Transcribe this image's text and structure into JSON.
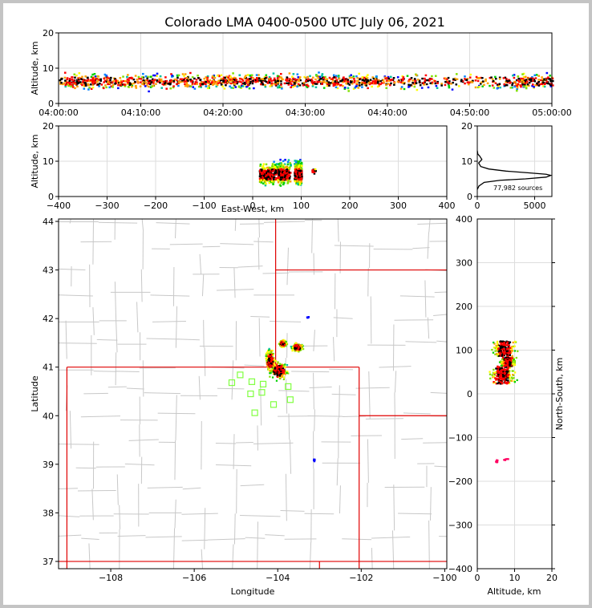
{
  "title": "Colorado LMA 0400-0500 UTC July 06, 2021",
  "colors": {
    "frame": "#c4c4c4",
    "grid": "#dddddd",
    "county": "#c8c8c8",
    "state": "#e00000",
    "station": "#80ff40",
    "palette": [
      "#0000ff",
      "#0080ff",
      "#00c0a0",
      "#00d000",
      "#80e000",
      "#ffff00",
      "#ffa000",
      "#ff0000",
      "#ff0060",
      "#000000"
    ]
  },
  "chart_data": [
    {
      "id": "time-altitude",
      "type": "heatmap",
      "xlabel": "",
      "ylabel": "Altitude, km",
      "xlim_minutes": [
        0,
        60
      ],
      "ylim": [
        0,
        20
      ],
      "xtick_labels": [
        "04:00:00",
        "04:10:00",
        "04:20:00",
        "04:30:00",
        "04:40:00",
        "04:50:00",
        "05:00:00"
      ],
      "ytick_values": [
        0,
        10,
        20
      ],
      "band_center_km": 6.5,
      "band_extent_km": [
        3,
        12
      ]
    },
    {
      "id": "eastwest-altitude",
      "type": "heatmap",
      "xlabel": "East-West, km",
      "ylabel": "Altitude, km",
      "xlim": [
        -400,
        400
      ],
      "ylim": [
        0,
        20
      ],
      "xtick_values": [
        -400,
        -300,
        -200,
        -100,
        0,
        100,
        200,
        300,
        400
      ],
      "ytick_values": [
        0,
        10,
        20
      ],
      "cells": [
        {
          "ew": 25,
          "alt": 6.5,
          "w": 25,
          "h": 9
        },
        {
          "ew": 57,
          "alt": 7,
          "w": 40,
          "h": 11
        },
        {
          "ew": 92,
          "alt": 7,
          "w": 15,
          "h": 12
        },
        {
          "ew": 125,
          "alt": 7.5,
          "w": 8,
          "h": 3
        }
      ]
    },
    {
      "id": "altitude-histogram",
      "type": "line",
      "annotation": "77,982 sources",
      "xlim": [
        0,
        6500
      ],
      "ylim": [
        0,
        20
      ],
      "xtick_values": [
        0,
        5000
      ],
      "ytick_values": [
        0,
        10,
        20
      ],
      "x": [
        0,
        150,
        600,
        2000,
        4200,
        6000,
        6400,
        6000,
        4500,
        2500,
        1000,
        300,
        120,
        400,
        200,
        50,
        0
      ],
      "y": [
        2,
        3,
        4,
        4.6,
        5,
        5.5,
        6,
        6.3,
        6.7,
        7.2,
        7.8,
        8.5,
        9.5,
        10.5,
        11.5,
        12,
        13
      ]
    },
    {
      "id": "map",
      "type": "scatter",
      "xlabel": "Longitude",
      "ylabel": "Latitude",
      "xlim": [
        -109.25,
        -99.95
      ],
      "ylim": [
        36.85,
        44.05
      ],
      "xtick_values": [
        -108,
        -106,
        -104,
        -102,
        -100
      ],
      "ytick_values": [
        37,
        38,
        39,
        40,
        41,
        42,
        43,
        44
      ],
      "stations": [
        {
          "lon": -104.9,
          "lat": 40.84
        },
        {
          "lon": -105.1,
          "lat": 40.68
        },
        {
          "lon": -104.62,
          "lat": 40.7
        },
        {
          "lon": -104.35,
          "lat": 40.65
        },
        {
          "lon": -104.65,
          "lat": 40.45
        },
        {
          "lon": -104.38,
          "lat": 40.48
        },
        {
          "lon": -103.75,
          "lat": 40.6
        },
        {
          "lon": -103.7,
          "lat": 40.33
        },
        {
          "lon": -104.1,
          "lat": 40.23
        },
        {
          "lon": -104.55,
          "lat": 40.06
        }
      ],
      "source_clusters": [
        {
          "lon": -104.0,
          "lat": 40.95,
          "rlon": 0.28,
          "rlat": 0.25
        },
        {
          "lon": -104.2,
          "lat": 41.15,
          "rlon": 0.15,
          "rlat": 0.3
        },
        {
          "lon": -103.55,
          "lat": 41.42,
          "rlon": 0.18,
          "rlat": 0.12
        },
        {
          "lon": -103.9,
          "lat": 41.5,
          "rlon": 0.12,
          "rlat": 0.1
        },
        {
          "lon": -103.15,
          "lat": 39.1,
          "rlon": 0.04,
          "rlat": 0.04
        },
        {
          "lon": -103.3,
          "lat": 42.04,
          "rlon": 0.05,
          "rlat": 0.03
        }
      ]
    },
    {
      "id": "altitude-northsouth",
      "type": "heatmap",
      "xlabel": "Altitude, km",
      "ylabel": "North-South, km",
      "xlim": [
        0,
        20
      ],
      "ylim": [
        -400,
        400
      ],
      "xtick_values": [
        0,
        10,
        20
      ],
      "ytick_values": [
        -400,
        -300,
        -200,
        -100,
        0,
        100,
        200,
        300,
        400
      ],
      "cells": [
        {
          "alt": 7,
          "ns": 105,
          "w": 9,
          "h": 35
        },
        {
          "alt": 6.5,
          "ns": 45,
          "w": 10,
          "h": 40
        },
        {
          "alt": 8,
          "ns": 75,
          "w": 6,
          "h": 20
        },
        {
          "alt": 5,
          "ns": -152,
          "w": 1,
          "h": 5
        },
        {
          "alt": 7.5,
          "ns": -148,
          "w": 2,
          "h": 4
        }
      ]
    }
  ]
}
